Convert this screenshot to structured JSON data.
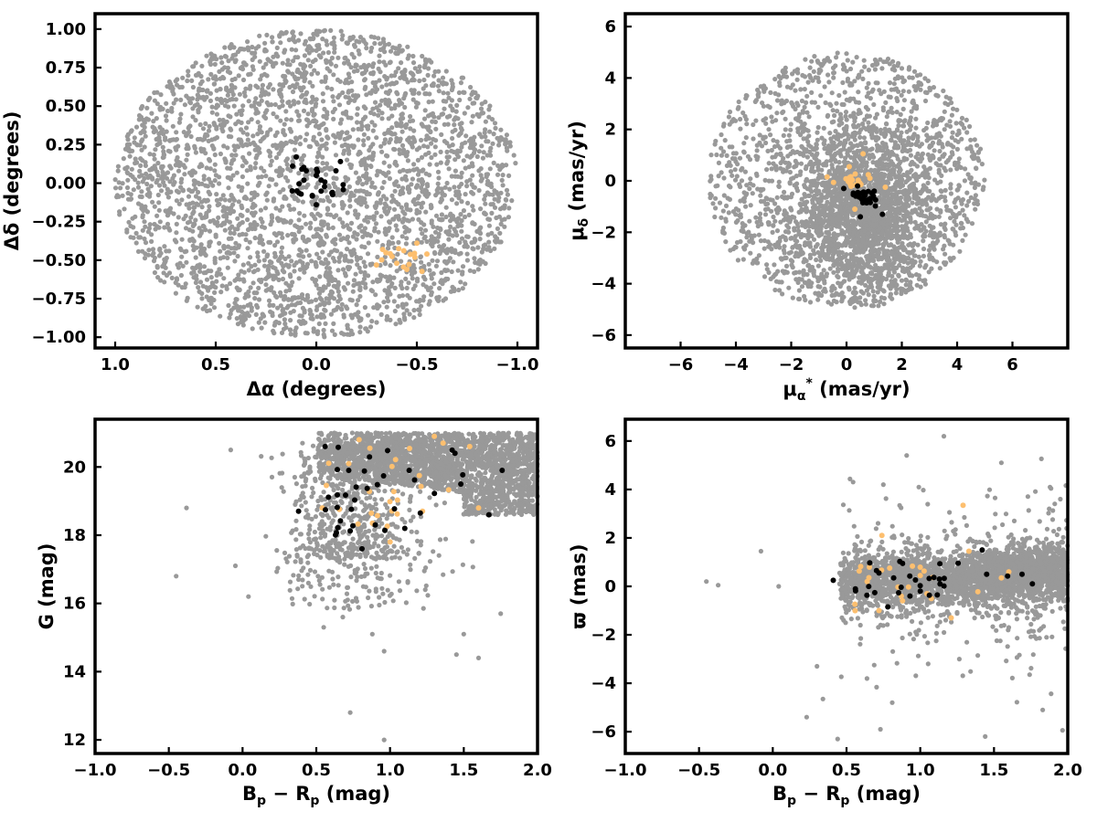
{
  "chart_data": [
    {
      "type": "scatter",
      "id": "sky",
      "xlabel": "Δα (degrees)",
      "ylabel": "Δδ (degrees)",
      "xlim": [
        1.1,
        -1.1
      ],
      "ylim": [
        -1.07,
        1.1
      ],
      "x_ticks": [
        1.0,
        0.5,
        0.0,
        -0.5,
        -1.0
      ],
      "x_tick_labels": [
        "1.0",
        "0.5",
        "0.0",
        "−0.5",
        "−1.0"
      ],
      "y_ticks": [
        1.0,
        0.75,
        0.5,
        0.25,
        0.0,
        -0.25,
        -0.5,
        -0.75,
        -1.0
      ],
      "y_tick_labels": [
        "1.00",
        "0.75",
        "0.50",
        "0.25",
        "0.00",
        "−0.25",
        "−0.50",
        "−0.75",
        "−1.00"
      ],
      "series": [
        {
          "color": "#999999",
          "count": 3200,
          "distribution": "uniform disk, radius 1.0 deg, centre (0,0)"
        },
        {
          "color": "#000000",
          "count": 28,
          "center": [
            0.0,
            -0.02
          ],
          "spread": [
            0.12,
            0.12
          ],
          "sample_points": [
            [
              0.05,
              0.08
            ],
            [
              0.1,
              0.17
            ],
            [
              -0.12,
              0.14
            ],
            [
              0.0,
              0.05
            ],
            [
              0.02,
              -0.08
            ],
            [
              -0.08,
              -0.06
            ],
            [
              0.12,
              -0.05
            ],
            [
              0.0,
              -0.14
            ]
          ]
        },
        {
          "color": "#fdbf6f",
          "count": 18,
          "center": [
            -0.42,
            -0.48
          ],
          "spread": [
            0.11,
            0.07
          ],
          "sample_points": [
            [
              -0.33,
              -0.43
            ],
            [
              -0.5,
              -0.39
            ],
            [
              -0.55,
              -0.46
            ],
            [
              -0.4,
              -0.52
            ],
            [
              -0.45,
              -0.56
            ]
          ]
        }
      ]
    },
    {
      "type": "scatter",
      "id": "pm",
      "xlabel": "μ_α* (mas/yr)",
      "ylabel": "μ_δ (mas/yr)",
      "xlim": [
        -8,
        8
      ],
      "ylim": [
        -6.5,
        6.5
      ],
      "x_ticks": [
        -6,
        -4,
        -2,
        0,
        2,
        4,
        6
      ],
      "x_tick_labels": [
        "−6",
        "−4",
        "−2",
        "0",
        "2",
        "4",
        "6"
      ],
      "y_ticks": [
        6,
        4,
        2,
        0,
        -2,
        -4,
        -6
      ],
      "y_tick_labels": [
        "6",
        "4",
        "2",
        "0",
        "−2",
        "−4",
        "−6"
      ],
      "series": [
        {
          "color": "#999999",
          "count": 3200,
          "distribution": "disk radius 5 mas/yr centred (0,0), concentrated at (0.7,-0.8)"
        },
        {
          "color": "#000000",
          "count": 30,
          "center": [
            0.75,
            -0.7
          ],
          "spread": [
            0.35,
            0.35
          ],
          "sample_points": [
            [
              0.4,
              -0.2
            ],
            [
              1.0,
              -0.4
            ],
            [
              1.3,
              -1.3
            ],
            [
              0.5,
              -1.4
            ],
            [
              -0.1,
              -0.3
            ]
          ]
        },
        {
          "color": "#fdbf6f",
          "count": 22,
          "center": [
            0.35,
            0.05
          ],
          "spread": [
            0.5,
            0.35
          ],
          "sample_points": [
            [
              -0.7,
              0.15
            ],
            [
              0.1,
              0.55
            ],
            [
              0.6,
              1.05
            ],
            [
              1.4,
              -0.25
            ],
            [
              0.3,
              -1.1
            ]
          ]
        }
      ]
    },
    {
      "type": "scatter",
      "id": "cmd",
      "xlabel": "B_p − R_p (mag)",
      "ylabel": "G (mag)",
      "xlim": [
        -1.0,
        2.0
      ],
      "ylim": [
        11.6,
        21.4
      ],
      "y_inverted": false,
      "x_ticks": [
        -1.0,
        -0.5,
        0.0,
        0.5,
        1.0,
        1.5,
        2.0
      ],
      "x_tick_labels": [
        "−1.0",
        "−0.5",
        "0.0",
        "0.5",
        "1.0",
        "1.5",
        "2.0"
      ],
      "y_ticks": [
        20,
        18,
        16,
        14,
        12
      ],
      "y_tick_labels": [
        "20",
        "18",
        "16",
        "14",
        "12"
      ],
      "series": [
        {
          "color": "#999999",
          "count": 3000,
          "distribution": "main band colour 0.5–2.0, G 18.5–21; tail to G~16 near colour 1.0",
          "outliers": [
            [
              -0.08,
              20.5
            ],
            [
              -0.38,
              18.8
            ],
            [
              -0.45,
              16.8
            ],
            [
              0.04,
              16.2
            ],
            [
              0.38,
              16.7
            ],
            [
              0.55,
              15.3
            ],
            [
              0.68,
              15.6
            ],
            [
              0.73,
              12.8
            ],
            [
              0.96,
              12.0
            ],
            [
              0.96,
              14.6
            ],
            [
              0.88,
              15.1
            ],
            [
              1.45,
              14.5
            ],
            [
              1.6,
              14.4
            ],
            [
              1.5,
              15.1
            ],
            [
              1.75,
              15.7
            ]
          ]
        },
        {
          "color": "#000000",
          "count": 40,
          "sample_points": [
            [
              0.38,
              18.7
            ],
            [
              0.56,
              20.6
            ],
            [
              0.72,
              19.9
            ],
            [
              0.81,
              17.6
            ],
            [
              1.13,
              19.9
            ],
            [
              1.44,
              20.4
            ],
            [
              1.48,
              19.5
            ],
            [
              1.67,
              18.6
            ],
            [
              1.76,
              19.9
            ],
            [
              1.1,
              18.2
            ],
            [
              0.9,
              18.3
            ]
          ]
        },
        {
          "color": "#fdbf6f",
          "count": 30,
          "sample_points": [
            [
              0.54,
              18.8
            ],
            [
              0.72,
              20.1
            ],
            [
              0.79,
              20.8
            ],
            [
              1.0,
              17.8
            ],
            [
              1.22,
              18.7
            ],
            [
              1.3,
              20.9
            ],
            [
              1.36,
              20.7
            ],
            [
              1.54,
              20.6
            ],
            [
              1.6,
              18.8
            ]
          ]
        }
      ]
    },
    {
      "type": "scatter",
      "id": "parallax",
      "xlabel": "B_p − R_p (mag)",
      "ylabel": "ϖ (mas)",
      "xlim": [
        -1.0,
        2.0
      ],
      "ylim": [
        -6.9,
        6.9
      ],
      "x_ticks": [
        -1.0,
        -0.5,
        0.0,
        0.5,
        1.0,
        1.5,
        2.0
      ],
      "x_tick_labels": [
        "−1.0",
        "−0.5",
        "0.0",
        "0.5",
        "1.0",
        "1.5",
        "2.0"
      ],
      "y_ticks": [
        6,
        4,
        2,
        0,
        -2,
        -4,
        -6
      ],
      "y_tick_labels": [
        "6",
        "4",
        "2",
        "0",
        "−2",
        "−4",
        "−6"
      ],
      "series": [
        {
          "color": "#999999",
          "count": 3000,
          "distribution": "band around ϖ≈0–0.5 for colour 0.4–2.0, spread ±1.5; sparse outliers to ±6",
          "outliers": [
            [
              -0.45,
              0.2
            ],
            [
              -0.37,
              0.05
            ],
            [
              -0.08,
              1.45
            ],
            [
              0.04,
              0.0
            ],
            [
              0.23,
              -5.4
            ],
            [
              0.3,
              -3.3
            ],
            [
              0.34,
              -4.65
            ],
            [
              0.44,
              -6.3
            ],
            [
              0.73,
              -5.9
            ],
            [
              0.81,
              -4.8
            ],
            [
              1.16,
              6.2
            ],
            [
              1.44,
              -6.2
            ],
            [
              1.55,
              5.1
            ],
            [
              1.83,
              -5.1
            ],
            [
              1.88,
              4.1
            ],
            [
              1.95,
              3.6
            ],
            [
              0.75,
              4.2
            ],
            [
              0.99,
              4.1
            ]
          ]
        },
        {
          "color": "#000000",
          "count": 35,
          "sample_points": [
            [
              0.41,
              0.25
            ],
            [
              0.56,
              -0.1
            ],
            [
              0.72,
              0.55
            ],
            [
              0.78,
              -0.85
            ],
            [
              0.82,
              0.35
            ],
            [
              0.93,
              -0.4
            ],
            [
              1.0,
              -0.2
            ],
            [
              1.13,
              0.3
            ],
            [
              1.42,
              1.5
            ],
            [
              1.45,
              0.5
            ],
            [
              1.69,
              0.5
            ],
            [
              1.76,
              0.1
            ]
          ]
        },
        {
          "color": "#fdbf6f",
          "count": 28,
          "sample_points": [
            [
              0.74,
              2.1
            ],
            [
              0.72,
              -1.0
            ],
            [
              0.88,
              -0.6
            ],
            [
              1.0,
              0.45
            ],
            [
              1.21,
              -1.3
            ],
            [
              1.29,
              3.35
            ],
            [
              1.33,
              1.45
            ],
            [
              1.55,
              0.35
            ],
            [
              1.6,
              0.6
            ]
          ]
        }
      ]
    }
  ]
}
